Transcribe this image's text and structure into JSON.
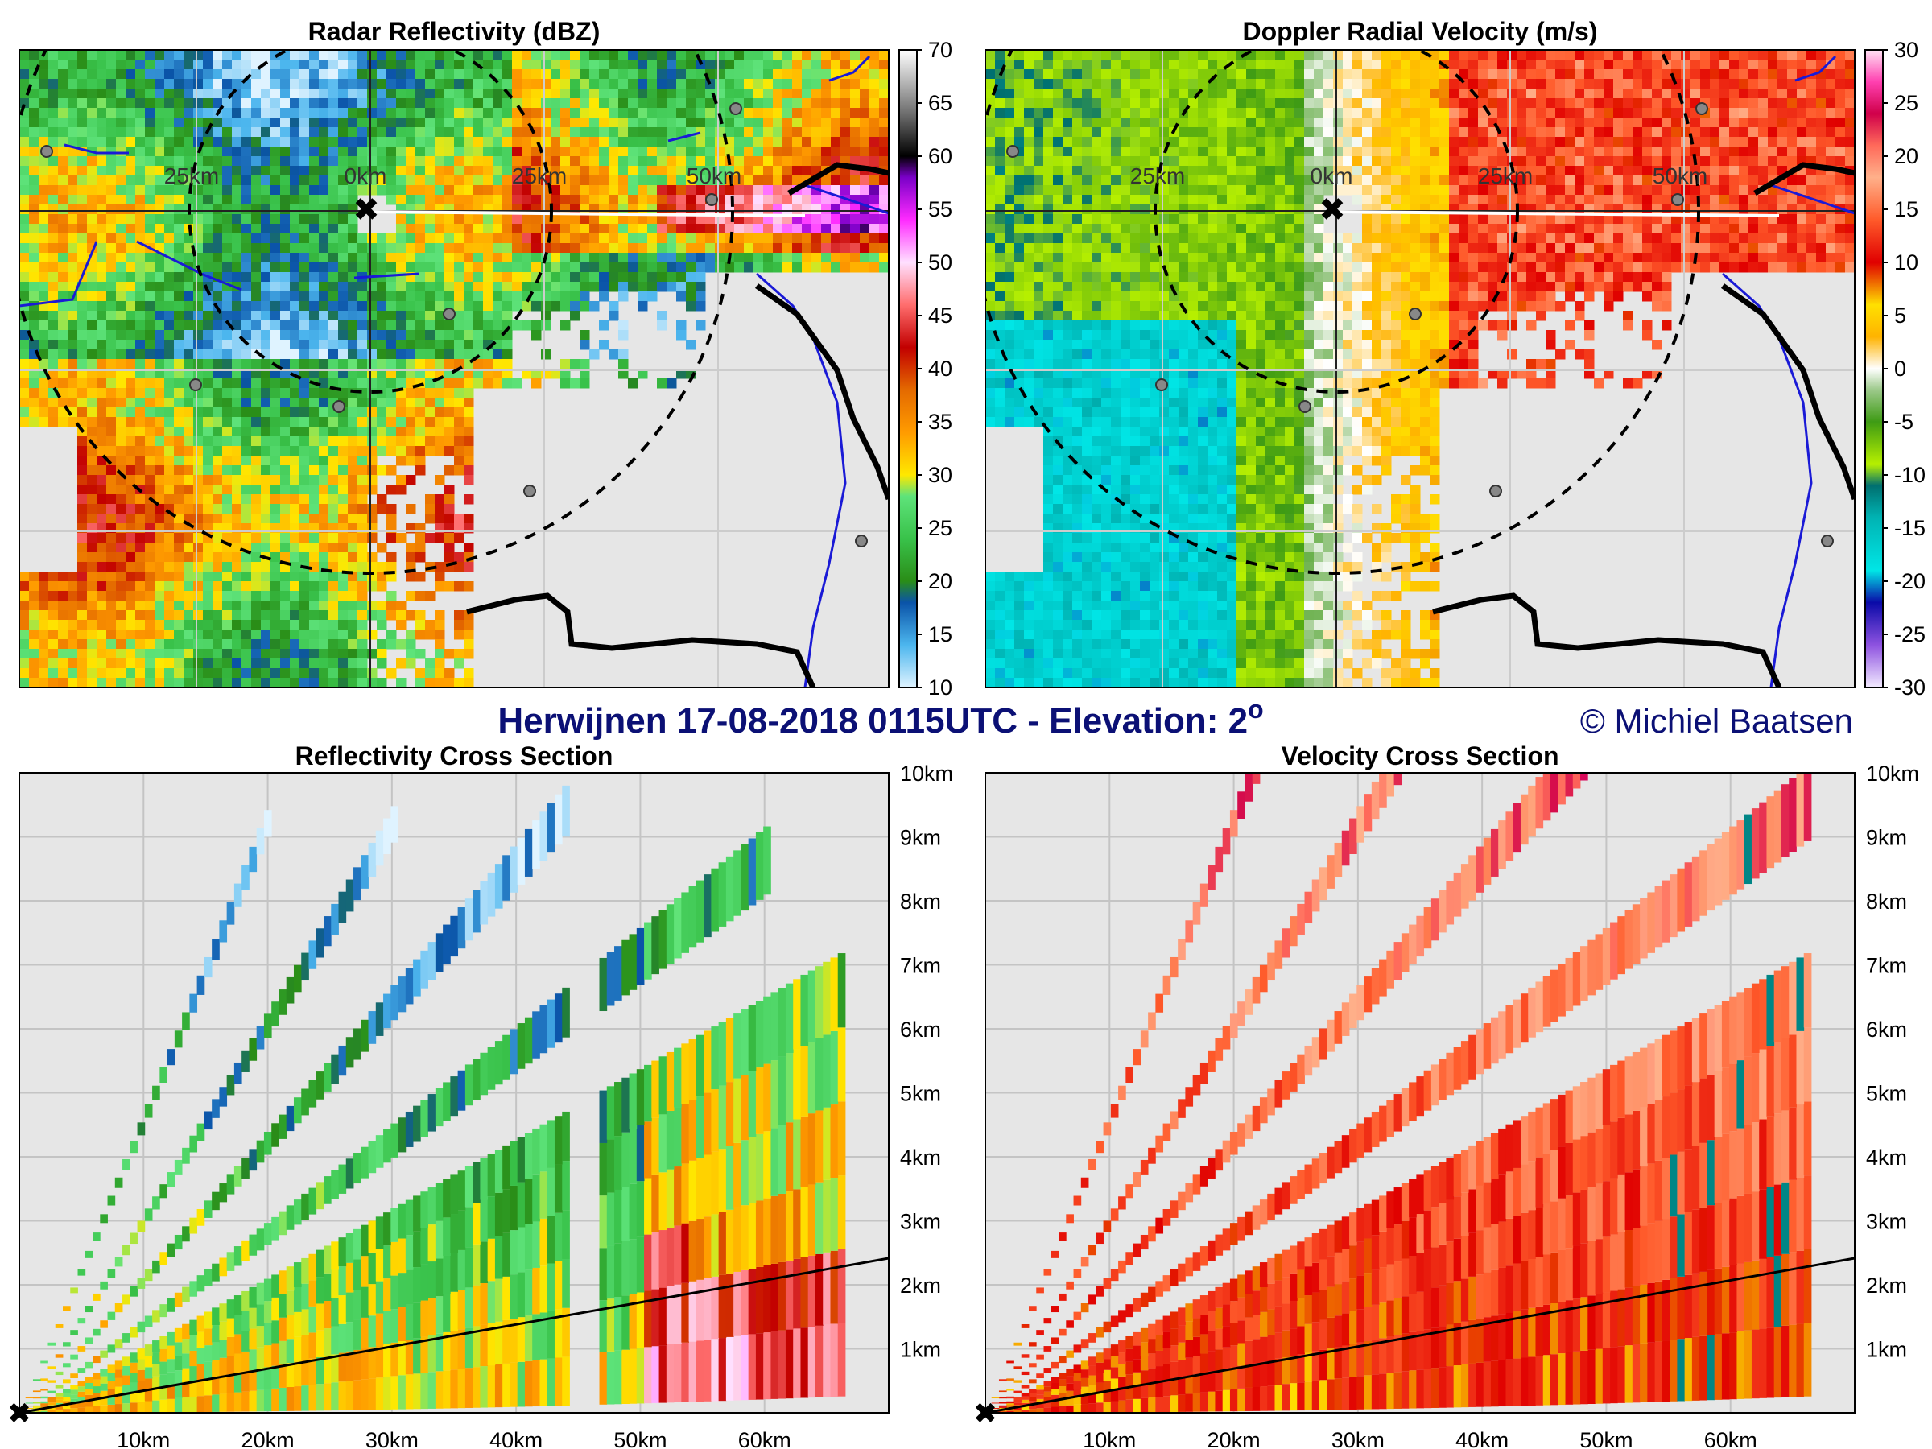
{
  "page_title": "Herwijnen 17-08-2018 0115UTC - Elevation: 2",
  "elevation_unit": "o",
  "copyright": "© Michiel Baatsen",
  "colors": {
    "background_panel": "#e6e6e6",
    "title_blue": "#0b1075",
    "river_blue": "#1a1ad6",
    "border_black": "#000000"
  },
  "chart_data": [
    {
      "type": "heatmap",
      "title": "Radar Reflectivity (dBZ)",
      "ring_labels": [
        "25km",
        "0km",
        "25km",
        "50km"
      ],
      "colorbar": {
        "ticks": [
          10,
          15,
          20,
          25,
          30,
          35,
          40,
          45,
          50,
          55,
          60,
          65,
          70
        ],
        "range": [
          10,
          70
        ],
        "stops": [
          {
            "value": 10,
            "color": "#dff3ff"
          },
          {
            "value": 14,
            "color": "#4cb6ee"
          },
          {
            "value": 18,
            "color": "#0a53a8"
          },
          {
            "value": 20,
            "color": "#2a8d17"
          },
          {
            "value": 24,
            "color": "#39c24a"
          },
          {
            "value": 28,
            "color": "#5ee37a"
          },
          {
            "value": 30,
            "color": "#ffe800"
          },
          {
            "value": 34,
            "color": "#ff9b00"
          },
          {
            "value": 38,
            "color": "#e46a00"
          },
          {
            "value": 42,
            "color": "#c20000"
          },
          {
            "value": 46,
            "color": "#ff6d6d"
          },
          {
            "value": 50,
            "color": "#ffe0ff"
          },
          {
            "value": 54,
            "color": "#ff2bff"
          },
          {
            "value": 58,
            "color": "#7a00c8"
          },
          {
            "value": 60,
            "color": "#000000"
          },
          {
            "value": 64,
            "color": "#6e6e6e"
          },
          {
            "value": 70,
            "color": "#ffffff"
          }
        ]
      }
    },
    {
      "type": "heatmap",
      "title": "Doppler Radial Velocity (m/s)",
      "ring_labels": [
        "25km",
        "0km",
        "25km",
        "50km"
      ],
      "colorbar": {
        "ticks": [
          -30,
          -25,
          -20,
          -15,
          -10,
          -5,
          0,
          5,
          10,
          15,
          20,
          25,
          30
        ],
        "range": [
          -30,
          30
        ],
        "stops": [
          {
            "value": -30,
            "color": "#f2eaff"
          },
          {
            "value": -26,
            "color": "#8e52e0"
          },
          {
            "value": -22,
            "color": "#0a0aa8"
          },
          {
            "value": -19,
            "color": "#00e6e6"
          },
          {
            "value": -14,
            "color": "#00b3b3"
          },
          {
            "value": -11,
            "color": "#006f6f"
          },
          {
            "value": -9,
            "color": "#b7f000"
          },
          {
            "value": -5,
            "color": "#3e9b14"
          },
          {
            "value": -2,
            "color": "#9cc98a"
          },
          {
            "value": 0,
            "color": "#ffffff"
          },
          {
            "value": 3,
            "color": "#ffb300"
          },
          {
            "value": 6,
            "color": "#ffe000"
          },
          {
            "value": 10,
            "color": "#e00000"
          },
          {
            "value": 14,
            "color": "#ff5a2a"
          },
          {
            "value": 18,
            "color": "#ffb08a"
          },
          {
            "value": 21,
            "color": "#ff6a5a"
          },
          {
            "value": 24,
            "color": "#d0004a"
          },
          {
            "value": 27,
            "color": "#ff40b0"
          },
          {
            "value": 30,
            "color": "#ffe2f4"
          }
        ]
      }
    },
    {
      "type": "heatmap",
      "title": "Reflectivity Cross Section",
      "x_ticks": [
        "10km",
        "20km",
        "30km",
        "40km",
        "50km",
        "60km"
      ],
      "y_ticks": [
        "1km",
        "2km",
        "3km",
        "4km",
        "5km",
        "6km",
        "7km",
        "8km",
        "9km",
        "10km"
      ],
      "xlim": [
        0,
        70
      ],
      "ylim": [
        0,
        10
      ]
    },
    {
      "type": "heatmap",
      "title": "Velocity Cross Section",
      "x_ticks": [
        "10km",
        "20km",
        "30km",
        "40km",
        "50km",
        "60km"
      ],
      "y_ticks": [
        "1km",
        "2km",
        "3km",
        "4km",
        "5km",
        "6km",
        "7km",
        "8km",
        "9km",
        "10km"
      ],
      "xlim": [
        0,
        70
      ],
      "ylim": [
        0,
        10
      ]
    }
  ]
}
